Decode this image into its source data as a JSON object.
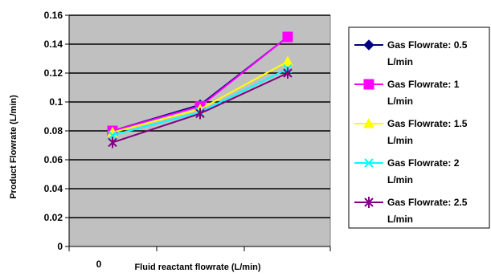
{
  "chart_data": {
    "type": "line",
    "title": "",
    "xlabel": "Fluid reactant flowrate (L/min)",
    "ylabel": "Product Flowrate (L/min)",
    "x_tick_labels": [
      "0"
    ],
    "ylim": [
      0,
      0.16
    ],
    "y_ticks": [
      0,
      0.02,
      0.04,
      0.06,
      0.08,
      0.1,
      0.12,
      0.14,
      0.16
    ],
    "y_tick_labels": [
      "0",
      "0.02",
      "0.04",
      "0.06",
      "0.08",
      "0.1",
      "0.12",
      "0.14",
      "0.16"
    ],
    "grid": true,
    "legend_position": "right",
    "plot_background": "#c0c0c0",
    "series": [
      {
        "name": "Gas Flowrate: 0.5 L/min",
        "legend_lines": [
          "Gas Flowrate: 0.5",
          "L/min"
        ],
        "values": [
          0.08,
          0.098,
          0.145
        ],
        "color": "#000080",
        "marker": "diamond"
      },
      {
        "name": "Gas Flowrate: 1 L/min",
        "legend_lines": [
          "Gas Flowrate: 1",
          "L/min"
        ],
        "values": [
          0.08,
          0.097,
          0.145
        ],
        "color": "#ff00ff",
        "marker": "square"
      },
      {
        "name": "Gas Flowrate: 1.5 L/min",
        "legend_lines": [
          "Gas Flowrate: 1.5",
          "L/min"
        ],
        "values": [
          0.079,
          0.095,
          0.128
        ],
        "color": "#ffff00",
        "marker": "triangle"
      },
      {
        "name": "Gas Flowrate: 2 L/min",
        "legend_lines": [
          "Gas Flowrate: 2",
          "L/min"
        ],
        "values": [
          0.077,
          0.093,
          0.123
        ],
        "color": "#00ffff",
        "marker": "x"
      },
      {
        "name": "Gas Flowrate: 2.5 L/min",
        "legend_lines": [
          "Gas Flowrate: 2.5",
          "L/min"
        ],
        "values": [
          0.072,
          0.092,
          0.12
        ],
        "color": "#800080",
        "marker": "star"
      }
    ]
  }
}
